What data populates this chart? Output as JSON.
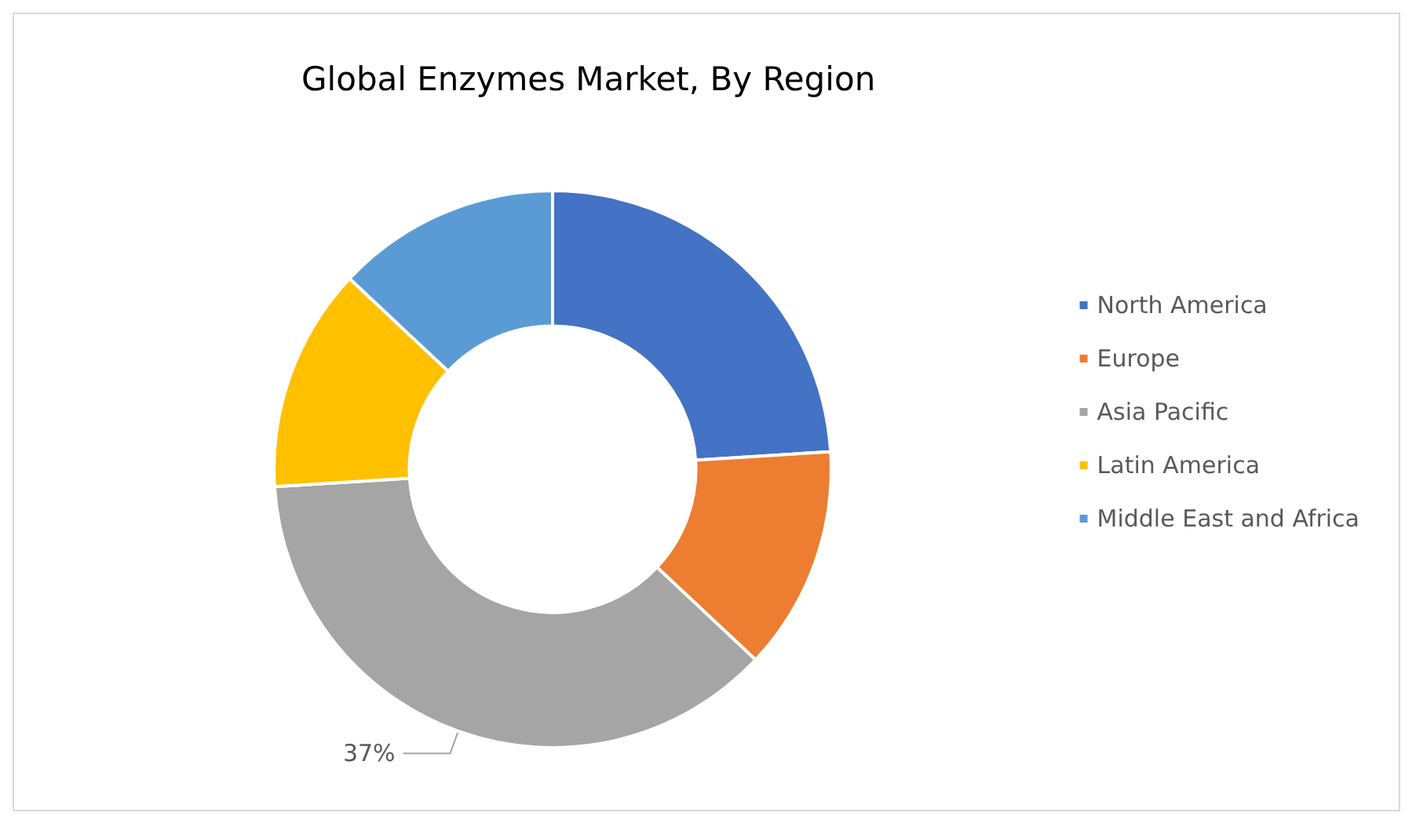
{
  "chart_data": {
    "type": "donut",
    "title": "Global Enzymes Market, By Region",
    "categories": [
      "North America",
      "Europe",
      "Asia Pacific",
      "Latin America",
      "Middle East and Africa"
    ],
    "values": [
      24,
      13,
      37,
      13,
      13
    ],
    "colors": [
      "#4472c4",
      "#ed7d31",
      "#a5a5a5",
      "#ffc000",
      "#5b9bd5"
    ],
    "value_labels": [
      null,
      null,
      "37%",
      null,
      null
    ],
    "legend": "right"
  }
}
